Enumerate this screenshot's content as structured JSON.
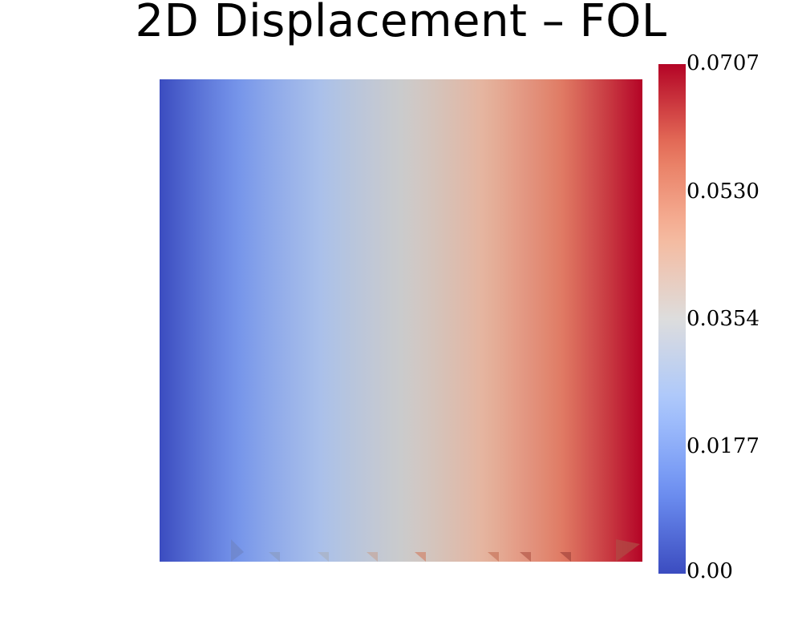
{
  "chart_data": {
    "type": "heatmap",
    "title": "2D Displacement – FOL",
    "field": "displacement magnitude (varies along x)",
    "colormap": "coolwarm",
    "colormap_stops": [
      "#3b4cc0",
      "#6f92f3",
      "#aac7fd",
      "#dddddd",
      "#f7b89c",
      "#e7745b",
      "#b40426"
    ],
    "colorbar": {
      "min": 0.0,
      "max": 0.0707,
      "tick_values": [
        0.0707,
        0.053,
        0.0354,
        0.0177,
        0.0
      ],
      "tick_labels": [
        "0.0707",
        "0.0530",
        "0.0354",
        "0.0177",
        "0.00"
      ]
    },
    "x_profile": [
      0.0,
      0.018,
      0.035,
      0.053,
      0.0707
    ],
    "glyph_colors": [
      "#6f86c8",
      "#8a9cc6",
      "#a9b2c4",
      "#c4aaa0",
      "#d08a72",
      "#c97960",
      "#b75e4d",
      "#a84a40",
      "#b04a44"
    ]
  }
}
